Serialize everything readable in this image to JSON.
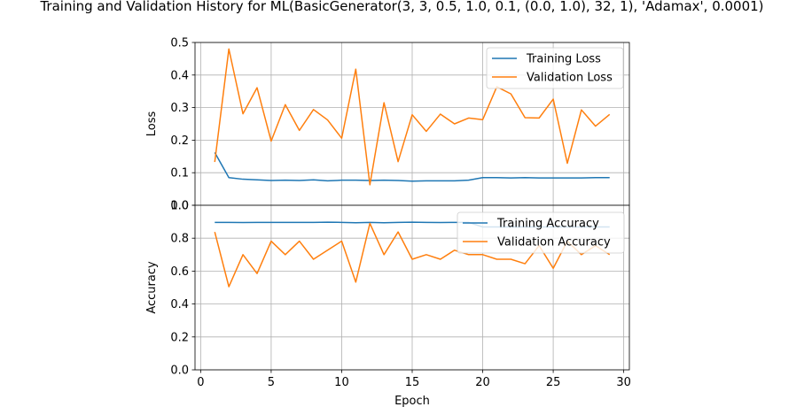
{
  "figure": {
    "title": "Training and Validation History for ML(BasicGenerator(3, 3, 0.5, 1.0, 0.1, (0.0, 1.0), 32, 1), 'Adamax', 0.0001)"
  },
  "colors": {
    "train": "#1f77b4",
    "validation": "#ff7f0e",
    "grid": "#b0b0b0",
    "axis": "#000000"
  },
  "chart_data": [
    {
      "type": "line",
      "ylabel": "Loss",
      "xlabel": "",
      "xlim": [
        -0.4,
        30.4
      ],
      "ylim": [
        0.0,
        0.5
      ],
      "xticks": [],
      "yticks": [
        0.0,
        0.1,
        0.2,
        0.3,
        0.4,
        0.5
      ],
      "ytick_labels": [
        "0.0",
        "0.1",
        "0.2",
        "0.3",
        "0.4",
        "0.5"
      ],
      "grid": true,
      "legend": "upper right",
      "x": [
        1,
        2,
        3,
        4,
        5,
        6,
        7,
        8,
        9,
        10,
        11,
        12,
        13,
        14,
        15,
        16,
        17,
        18,
        19,
        20,
        21,
        22,
        23,
        24,
        25,
        26,
        27,
        28,
        29
      ],
      "series": [
        {
          "name": "Training Loss",
          "color": "#1f77b4",
          "values": [
            0.162,
            0.085,
            0.08,
            0.078,
            0.076,
            0.077,
            0.076,
            0.078,
            0.075,
            0.077,
            0.077,
            0.076,
            0.077,
            0.076,
            0.074,
            0.075,
            0.075,
            0.075,
            0.077,
            0.085,
            0.085,
            0.084,
            0.085,
            0.084,
            0.084,
            0.084,
            0.084,
            0.085,
            0.085
          ]
        },
        {
          "name": "Validation Loss",
          "color": "#ff7f0e",
          "values": [
            0.133,
            0.48,
            0.281,
            0.361,
            0.197,
            0.309,
            0.23,
            0.294,
            0.262,
            0.206,
            0.418,
            0.063,
            0.315,
            0.134,
            0.278,
            0.227,
            0.28,
            0.25,
            0.268,
            0.263,
            0.364,
            0.342,
            0.269,
            0.268,
            0.326,
            0.129,
            0.293,
            0.243,
            0.279
          ]
        }
      ]
    },
    {
      "type": "line",
      "ylabel": "Accuracy",
      "xlabel": "Epoch",
      "xlim": [
        -0.4,
        30.4
      ],
      "ylim": [
        0.0,
        1.0
      ],
      "xticks": [
        0,
        5,
        10,
        15,
        20,
        25,
        30
      ],
      "xtick_labels": [
        "0",
        "5",
        "10",
        "15",
        "20",
        "25",
        "30"
      ],
      "yticks": [
        0.0,
        0.2,
        0.4,
        0.6,
        0.8,
        1.0
      ],
      "ytick_labels": [
        "0.0",
        "0.2",
        "0.4",
        "0.6",
        "0.8",
        "1.0"
      ],
      "grid": true,
      "legend": "upper right",
      "x": [
        1,
        2,
        3,
        4,
        5,
        6,
        7,
        8,
        9,
        10,
        11,
        12,
        13,
        14,
        15,
        16,
        17,
        18,
        19,
        20,
        21,
        22,
        23,
        24,
        25,
        26,
        27,
        28,
        29
      ],
      "series": [
        {
          "name": "Training Accuracy",
          "color": "#1f77b4",
          "values": [
            0.896,
            0.896,
            0.895,
            0.896,
            0.896,
            0.896,
            0.896,
            0.896,
            0.897,
            0.896,
            0.894,
            0.896,
            0.894,
            0.896,
            0.897,
            0.896,
            0.895,
            0.896,
            0.896,
            0.868,
            0.868,
            0.868,
            0.868,
            0.868,
            0.868,
            0.868,
            0.868,
            0.868,
            0.868
          ]
        },
        {
          "name": "Validation Accuracy",
          "color": "#ff7f0e",
          "values": [
            0.838,
            0.505,
            0.7,
            0.585,
            0.782,
            0.7,
            0.782,
            0.672,
            0.727,
            0.782,
            0.533,
            0.89,
            0.7,
            0.838,
            0.672,
            0.7,
            0.672,
            0.727,
            0.7,
            0.7,
            0.672,
            0.672,
            0.645,
            0.755,
            0.617,
            0.782,
            0.7,
            0.755,
            0.7
          ]
        }
      ]
    }
  ]
}
